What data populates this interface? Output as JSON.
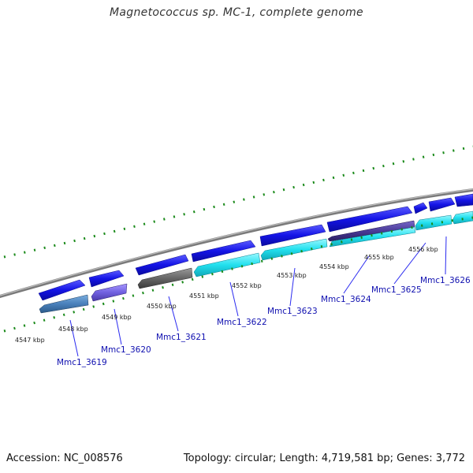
{
  "title": "Magnetococcus sp. MC-1, complete genome",
  "footer": {
    "accession": "Accession: NC_008576",
    "summary": "Topology: circular; Length: 4,719,581 bp; Genes: 3,772"
  },
  "colors": {
    "backbone": "#8a8a8a",
    "tick": "#1a8a1a",
    "forward_gene": "#1414e6",
    "reverse_gene": "#22e0ee",
    "label": "#1010b0"
  },
  "kbp_labels": [
    {
      "value": 4547,
      "text": "4547 kbp"
    },
    {
      "value": 4548,
      "text": "4548 kbp"
    },
    {
      "value": 4549,
      "text": "4549 kbp"
    },
    {
      "value": 4550,
      "text": "4550 kbp"
    },
    {
      "value": 4551,
      "text": "4551 kbp"
    },
    {
      "value": 4552,
      "text": "4552 kbp"
    },
    {
      "value": 4553,
      "text": "4553 kbp"
    },
    {
      "value": 4554,
      "text": "4554 kbp"
    },
    {
      "value": 4555,
      "text": "4555 kbp"
    },
    {
      "value": 4556,
      "text": "4556 kbp"
    }
  ],
  "gene_labels": [
    {
      "text": "Mmc1_3619"
    },
    {
      "text": "Mmc1_3620"
    },
    {
      "text": "Mmc1_3621"
    },
    {
      "text": "Mmc1_3622"
    },
    {
      "text": "Mmc1_3623"
    },
    {
      "text": "Mmc1_3624"
    },
    {
      "text": "Mmc1_3625"
    },
    {
      "text": "Mmc1_3626"
    }
  ]
}
